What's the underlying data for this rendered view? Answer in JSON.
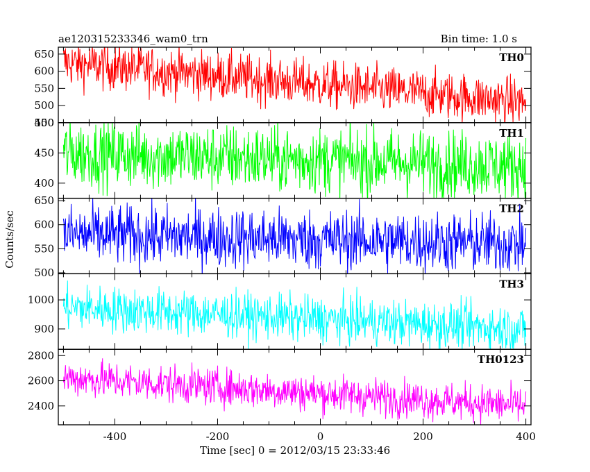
{
  "header": {
    "title": "ae120315233346_wam0_trn",
    "bin_time": "Bin time: 1.0 s"
  },
  "axes": {
    "ylabel": "Counts/sec",
    "xlabel": "Time [sec] 0 = 2012/03/15 23:33:46"
  },
  "chart_data": {
    "type": "line",
    "layout": "stacked panels, shared x-axis",
    "x_range": [
      -510,
      410
    ],
    "x_ticks": [
      -400,
      -200,
      0,
      200,
      400
    ],
    "bin_time_s": 1.0,
    "series": [
      {
        "name": "TH0",
        "color": "#ff0000",
        "ylim": [
          450,
          670
        ],
        "yticks": [
          450,
          500,
          550,
          600,
          650
        ],
        "trend_start": 625,
        "trend_end": 510,
        "noise": 35
      },
      {
        "name": "TH1",
        "color": "#00ff00",
        "ylim": [
          375,
          500
        ],
        "yticks": [
          400,
          450,
          500
        ],
        "trend_start": 450,
        "trend_end": 428,
        "noise": 28
      },
      {
        "name": "TH2",
        "color": "#0000ff",
        "ylim": [
          498,
          655
        ],
        "yticks": [
          500,
          550,
          600,
          650
        ],
        "trend_start": 580,
        "trend_end": 560,
        "noise": 32
      },
      {
        "name": "TH3",
        "color": "#00ffff",
        "ylim": [
          830,
          1090
        ],
        "yticks": [
          900,
          1000
        ],
        "trend_start": 975,
        "trend_end": 900,
        "noise": 40
      },
      {
        "name": "TH0123",
        "color": "#ff00ff",
        "ylim": [
          2250,
          2850
        ],
        "yticks": [
          2400,
          2600,
          2800
        ],
        "trend_start": 2625,
        "trend_end": 2400,
        "noise": 75
      }
    ]
  }
}
